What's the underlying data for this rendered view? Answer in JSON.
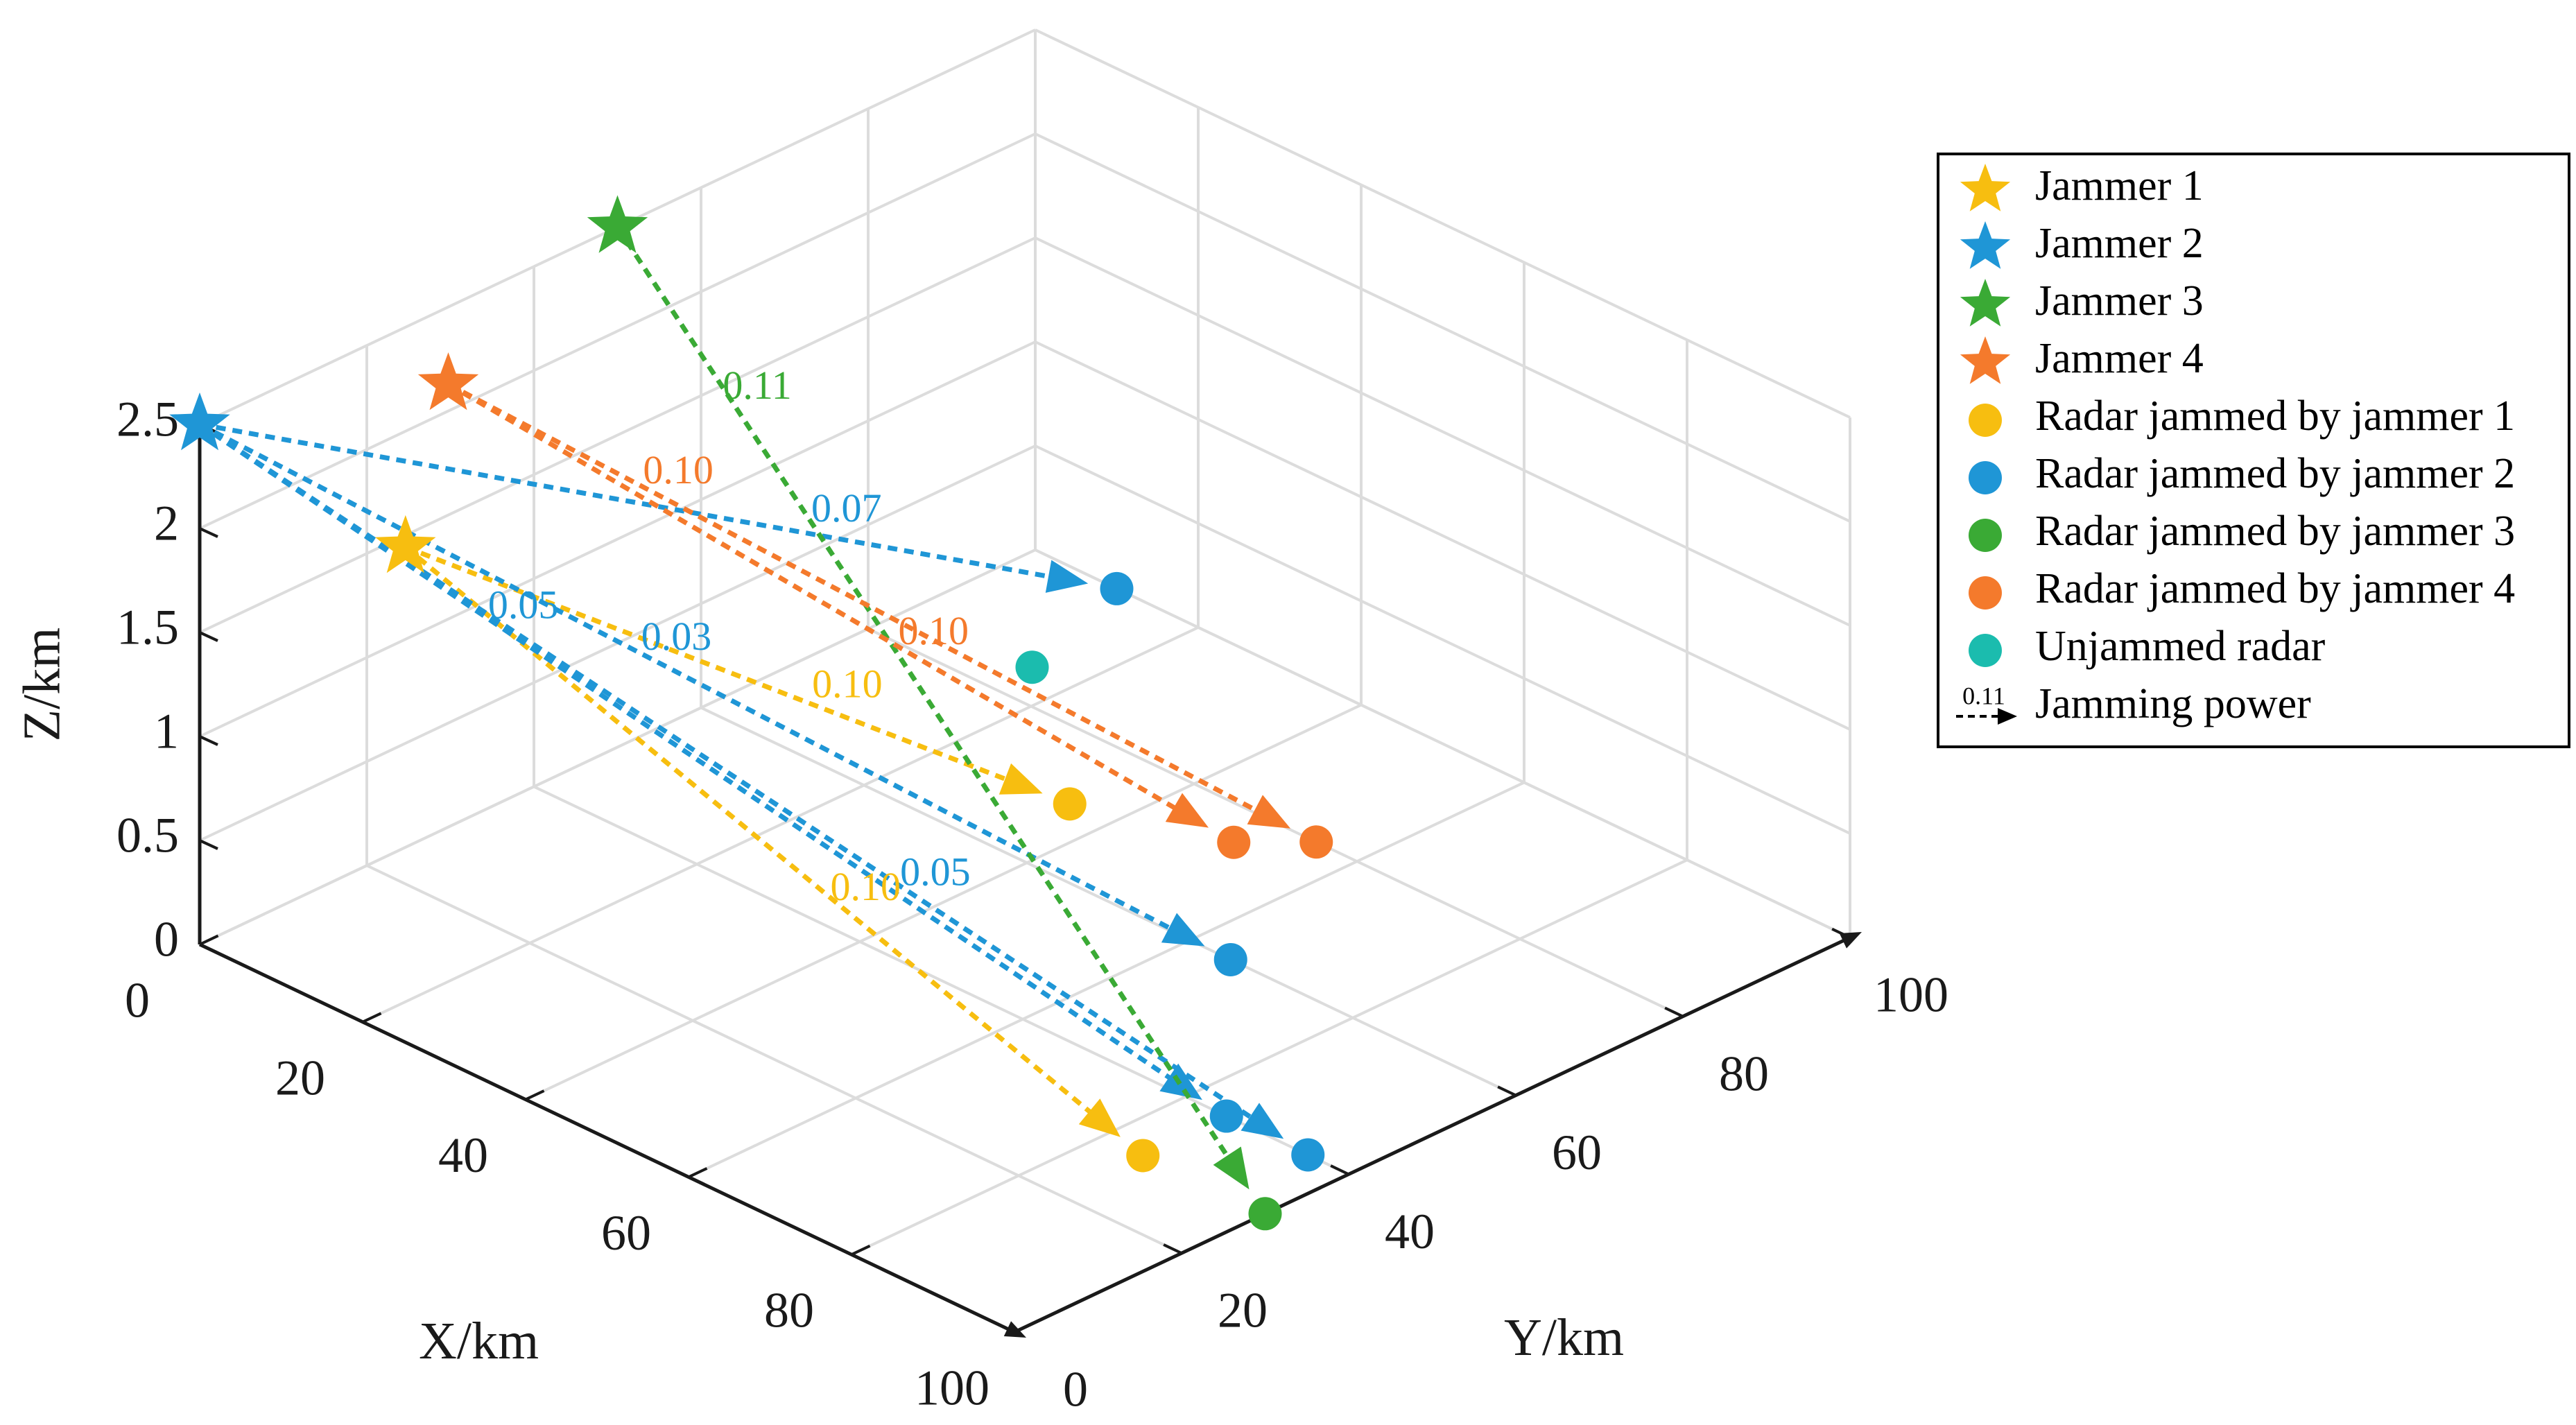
{
  "chart_data": {
    "type": "scatter3d",
    "title": "",
    "xlabel": "X/km",
    "ylabel": "Y/km",
    "zlabel": "Z/km",
    "xlim": [
      0,
      100
    ],
    "ylim": [
      0,
      100
    ],
    "zlim": [
      0,
      2.5
    ],
    "xticks": [
      "0",
      "20",
      "40",
      "60",
      "80",
      "100"
    ],
    "yticks": [
      "0",
      "20",
      "40",
      "60",
      "80",
      "100"
    ],
    "zticks": [
      "0",
      "0.5",
      "1",
      "1.5",
      "2",
      "2.5"
    ],
    "grid": true,
    "colors": {
      "jammer1": "#f7be10",
      "jammer2": "#1f96d6",
      "jammer3": "#3aaa35",
      "jammer4": "#f47a2c",
      "unjammed": "#1bbcae"
    },
    "jammers": [
      {
        "id": 1,
        "name": "Jammer 1",
        "x": 15,
        "y": 10,
        "z": 2.0
      },
      {
        "id": 2,
        "name": "Jammer 2",
        "x": 0,
        "y": 0,
        "z": 2.5
      },
      {
        "id": 3,
        "name": "Jammer 3",
        "x": 0,
        "y": 50,
        "z": 2.5
      },
      {
        "id": 4,
        "name": "Jammer 4",
        "x": 10,
        "y": 20,
        "z": 2.5
      }
    ],
    "radars": [
      {
        "x": 85,
        "y": 30,
        "z": 0,
        "jammed_by": 1
      },
      {
        "x": 35,
        "y": 70,
        "z": 0,
        "jammed_by": 1
      },
      {
        "x": 65,
        "y": 60,
        "z": 0,
        "jammed_by": 2
      },
      {
        "x": 10,
        "y": 100,
        "z": 0,
        "jammed_by": 2
      },
      {
        "x": 85,
        "y": 40,
        "z": 0,
        "jammed_by": 2
      },
      {
        "x": 95,
        "y": 40,
        "z": 0,
        "jammed_by": 2
      },
      {
        "x": 100,
        "y": 30,
        "z": 0,
        "jammed_by": 3
      },
      {
        "x": 50,
        "y": 75,
        "z": 0,
        "jammed_by": 4
      },
      {
        "x": 55,
        "y": 80,
        "z": 0,
        "jammed_by": 4
      },
      {
        "x": 15,
        "y": 85,
        "z": 0,
        "jammed_by": 0
      }
    ],
    "links": [
      {
        "jammer": 1,
        "radar": 0,
        "power": "0.10",
        "label_t": 0.6
      },
      {
        "jammer": 1,
        "radar": 1,
        "power": "0.10",
        "label_t": 0.65
      },
      {
        "jammer": 2,
        "radar": 2,
        "power": "0.03",
        "label_t": 0.45
      },
      {
        "jammer": 2,
        "radar": 3,
        "power": "0.07",
        "label_t": 0.7
      },
      {
        "jammer": 2,
        "radar": 4,
        "power": "0.05",
        "label_t": 0.3
      },
      {
        "jammer": 2,
        "radar": 5,
        "power": "0.05",
        "label_t": 0.65
      },
      {
        "jammer": 3,
        "radar": 6,
        "power": "0.11",
        "label_t": 0.18
      },
      {
        "jammer": 4,
        "radar": 7,
        "power": "0.10",
        "label_t": 0.6
      },
      {
        "jammer": 4,
        "radar": 8,
        "power": "0.10",
        "label_t": 0.25
      }
    ],
    "legend": {
      "location": "right",
      "entries": [
        {
          "marker": "star",
          "color": "#f7be10",
          "label": "Jammer 1"
        },
        {
          "marker": "star",
          "color": "#1f96d6",
          "label": "Jammer 2"
        },
        {
          "marker": "star",
          "color": "#3aaa35",
          "label": "Jammer 3"
        },
        {
          "marker": "star",
          "color": "#f47a2c",
          "label": "Jammer 4"
        },
        {
          "marker": "circle",
          "color": "#f7be10",
          "label": "Radar jammed by jammer 1"
        },
        {
          "marker": "circle",
          "color": "#1f96d6",
          "label": "Radar jammed by jammer 2"
        },
        {
          "marker": "circle",
          "color": "#3aaa35",
          "label": "Radar jammed by jammer 3"
        },
        {
          "marker": "circle",
          "color": "#f47a2c",
          "label": "Radar jammed by jammer 4"
        },
        {
          "marker": "circle",
          "color": "#1bbcae",
          "label": "Unjammed radar"
        },
        {
          "marker": "arrow",
          "color": "#000000",
          "label": "Jamming power",
          "sample": "0.11"
        }
      ]
    }
  }
}
